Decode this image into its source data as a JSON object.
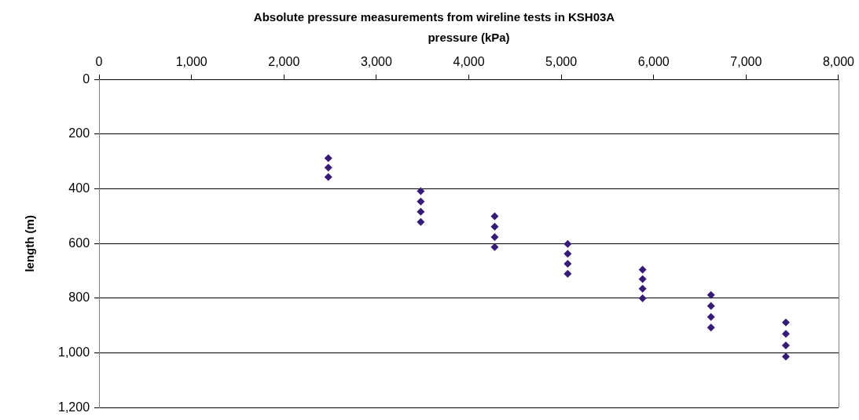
{
  "chart_data": {
    "type": "scatter",
    "title": "Absolute pressure measurements from wireline tests in KSH03A",
    "xlabel": "pressure (kPa)",
    "ylabel": "length (m)",
    "x": [
      2480,
      2480,
      2480,
      3480,
      3480,
      3480,
      3480,
      4280,
      4280,
      4280,
      4280,
      5070,
      5070,
      5070,
      5070,
      5880,
      5880,
      5880,
      5880,
      6620,
      6620,
      6620,
      6620,
      7430,
      7430,
      7430,
      7430
    ],
    "values": [
      288,
      322,
      357,
      408,
      446,
      484,
      521,
      500,
      538,
      576,
      613,
      601,
      637,
      674,
      710,
      695,
      730,
      765,
      800,
      788,
      828,
      868,
      907,
      888,
      930,
      972,
      1013
    ],
    "color": "#371c77",
    "marker": "diamond",
    "xlim": [
      0,
      8000
    ],
    "xticks": [
      {
        "value": 0,
        "label": "0"
      },
      {
        "value": 1000,
        "label": "1,000"
      },
      {
        "value": 2000,
        "label": "2,000"
      },
      {
        "value": 3000,
        "label": "3,000"
      },
      {
        "value": 4000,
        "label": "4,000"
      },
      {
        "value": 5000,
        "label": "5,000"
      },
      {
        "value": 6000,
        "label": "6,000"
      },
      {
        "value": 7000,
        "label": "7,000"
      },
      {
        "value": 8000,
        "label": "8,000"
      }
    ],
    "ylim": [
      1200,
      0
    ],
    "yticks": [
      {
        "value": 0,
        "label": "0"
      },
      {
        "value": 200,
        "label": "200"
      },
      {
        "value": 400,
        "label": "400"
      },
      {
        "value": 600,
        "label": "600"
      },
      {
        "value": 800,
        "label": "800"
      },
      {
        "value": 1000,
        "label": "1,000"
      },
      {
        "value": 1200,
        "label": "1,200"
      }
    ],
    "grid": "y",
    "legend": false
  }
}
